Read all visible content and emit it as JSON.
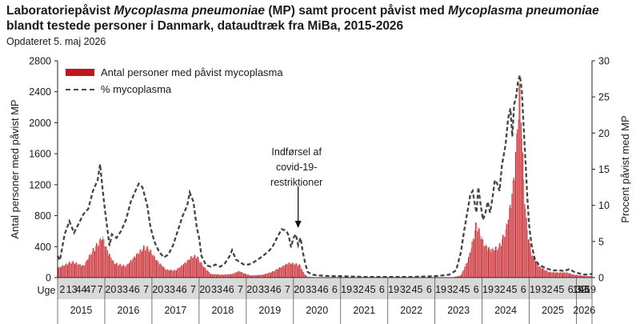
{
  "title": {
    "part1": "Laboratoriepåvist ",
    "organism1": "Mycoplasma pneumoniae",
    "part2": " (MP) samt procent påvist med ",
    "organism2": "Mycoplasma pneumoniae",
    "part3": " blandt testede personer i Danmark, dataudtræk fra MiBa, 2015-2026"
  },
  "updated": "Opdateret 5. maj 2026",
  "annotation": {
    "lines": [
      "Indførsel af",
      "covid-19-",
      "restriktioner"
    ]
  },
  "colors": {
    "bars": "#c0161e",
    "line": "#444444",
    "axis_band": "#d9d9d9"
  },
  "chart_data": {
    "type": "bar",
    "ylabel": "Antal personer med påvist MP",
    "y2label": "Procent påvist med MP",
    "ylim": [
      0,
      2800
    ],
    "y2lim": [
      0,
      30
    ],
    "yticks": [
      0,
      400,
      800,
      1200,
      1600,
      2000,
      2400,
      2800
    ],
    "y2ticks": [
      0,
      5,
      10,
      15,
      20,
      25,
      30
    ],
    "xaxis_prefix": "Uge",
    "legend": [
      "Antal personer med påvist mycoplasma",
      "% mycoplasma"
    ],
    "legend_position": "top-left",
    "grid": false,
    "week_labels": [
      [
        "2",
        "13",
        "44",
        "47",
        "7"
      ],
      [
        "20",
        "33",
        "46",
        "7"
      ],
      [
        "20",
        "33",
        "46",
        "7"
      ],
      [
        "20",
        "33",
        "46",
        "7"
      ],
      [
        "20",
        "33",
        "46",
        "7"
      ],
      [
        "20",
        "33",
        "46",
        "6"
      ],
      [
        "19",
        "32",
        "45",
        "6"
      ],
      [
        "19",
        "32",
        "45",
        "6"
      ],
      [
        "19",
        "32",
        "45",
        "6"
      ],
      [
        "19",
        "32",
        "45",
        "6"
      ],
      [
        "19",
        "32",
        "45",
        "6"
      ],
      [
        "19",
        "32",
        "45",
        "6",
        "19"
      ]
    ],
    "years": [
      "2015",
      "2016",
      "2017",
      "2018",
      "2019",
      "2020",
      "2021",
      "2022",
      "2023",
      "2024",
      "2025",
      "2026"
    ],
    "series": [
      {
        "name": "Antal personer med påvist mycoplasma",
        "kind": "bar",
        "points": [
          [
            2015.0,
            130
          ],
          [
            2015.3,
            220
          ],
          [
            2015.55,
            160
          ],
          [
            2015.75,
            380
          ],
          [
            2015.9,
            510
          ],
          [
            2015.95,
            560
          ],
          [
            2016.05,
            380
          ],
          [
            2016.2,
            200
          ],
          [
            2016.45,
            160
          ],
          [
            2016.65,
            300
          ],
          [
            2016.85,
            430
          ],
          [
            2016.95,
            390
          ],
          [
            2017.1,
            240
          ],
          [
            2017.3,
            110
          ],
          [
            2017.5,
            100
          ],
          [
            2017.7,
            200
          ],
          [
            2017.85,
            290
          ],
          [
            2017.95,
            300
          ],
          [
            2018.1,
            150
          ],
          [
            2018.25,
            50
          ],
          [
            2018.5,
            40
          ],
          [
            2018.7,
            50
          ],
          [
            2018.85,
            90
          ],
          [
            2018.95,
            60
          ],
          [
            2019.1,
            30
          ],
          [
            2019.35,
            40
          ],
          [
            2019.55,
            80
          ],
          [
            2019.75,
            150
          ],
          [
            2019.9,
            200
          ],
          [
            2020.05,
            190
          ],
          [
            2020.15,
            170
          ],
          [
            2020.22,
            60
          ],
          [
            2020.3,
            10
          ],
          [
            2020.5,
            4
          ],
          [
            2021.0,
            2
          ],
          [
            2022.0,
            2
          ],
          [
            2023.0,
            3
          ],
          [
            2023.4,
            6
          ],
          [
            2023.55,
            30
          ],
          [
            2023.7,
            240
          ],
          [
            2023.8,
            500
          ],
          [
            2023.88,
            760
          ],
          [
            2023.95,
            620
          ],
          [
            2024.05,
            450
          ],
          [
            2024.2,
            380
          ],
          [
            2024.35,
            420
          ],
          [
            2024.5,
            640
          ],
          [
            2024.6,
            980
          ],
          [
            2024.68,
            1400
          ],
          [
            2024.74,
            1950
          ],
          [
            2024.78,
            2500
          ],
          [
            2024.8,
            2630
          ],
          [
            2024.84,
            2100
          ],
          [
            2024.88,
            1350
          ],
          [
            2024.95,
            700
          ],
          [
            2025.05,
            330
          ],
          [
            2025.2,
            160
          ],
          [
            2025.4,
            80
          ],
          [
            2025.6,
            70
          ],
          [
            2025.8,
            70
          ],
          [
            2025.95,
            40
          ],
          [
            2026.1,
            30
          ],
          [
            2026.2,
            20
          ],
          [
            2026.33,
            18
          ]
        ]
      },
      {
        "name": "% mycoplasma",
        "kind": "line",
        "points": [
          [
            2015.0,
            3.0
          ],
          [
            2015.05,
            2.4
          ],
          [
            2015.15,
            6.0
          ],
          [
            2015.25,
            7.8
          ],
          [
            2015.35,
            6.2
          ],
          [
            2015.45,
            7.5
          ],
          [
            2015.55,
            8.8
          ],
          [
            2015.65,
            9.5
          ],
          [
            2015.75,
            12.0
          ],
          [
            2015.85,
            13.5
          ],
          [
            2015.9,
            15.7
          ],
          [
            2015.95,
            12.5
          ],
          [
            2016.0,
            9.5
          ],
          [
            2016.05,
            7.0
          ],
          [
            2016.1,
            4.4
          ],
          [
            2016.15,
            6.0
          ],
          [
            2016.25,
            5.5
          ],
          [
            2016.35,
            6.5
          ],
          [
            2016.45,
            8.0
          ],
          [
            2016.55,
            10.5
          ],
          [
            2016.65,
            12.0
          ],
          [
            2016.72,
            13.0
          ],
          [
            2016.8,
            12.5
          ],
          [
            2016.9,
            10.0
          ],
          [
            2016.97,
            7.0
          ],
          [
            2017.05,
            5.0
          ],
          [
            2017.15,
            3.6
          ],
          [
            2017.25,
            2.8
          ],
          [
            2017.35,
            3.2
          ],
          [
            2017.45,
            4.5
          ],
          [
            2017.55,
            6.5
          ],
          [
            2017.65,
            8.5
          ],
          [
            2017.75,
            10.0
          ],
          [
            2017.8,
            11.8
          ],
          [
            2017.88,
            10.5
          ],
          [
            2017.95,
            7.0
          ],
          [
            2018.0,
            5.5
          ],
          [
            2018.05,
            3.0
          ],
          [
            2018.15,
            1.7
          ],
          [
            2018.25,
            1.5
          ],
          [
            2018.35,
            1.8
          ],
          [
            2018.45,
            1.5
          ],
          [
            2018.55,
            2.0
          ],
          [
            2018.65,
            3.0
          ],
          [
            2018.7,
            3.8
          ],
          [
            2018.78,
            2.5
          ],
          [
            2018.85,
            2.2
          ],
          [
            2018.95,
            1.8
          ],
          [
            2019.05,
            1.8
          ],
          [
            2019.15,
            2.1
          ],
          [
            2019.25,
            2.5
          ],
          [
            2019.35,
            3.0
          ],
          [
            2019.45,
            3.5
          ],
          [
            2019.55,
            4.2
          ],
          [
            2019.65,
            5.5
          ],
          [
            2019.75,
            6.7
          ],
          [
            2019.85,
            6.5
          ],
          [
            2019.9,
            5.8
          ],
          [
            2019.95,
            4.2
          ],
          [
            2020.0,
            5.5
          ],
          [
            2020.05,
            6.0
          ],
          [
            2020.1,
            4.5
          ],
          [
            2020.15,
            5.5
          ],
          [
            2020.2,
            3.5
          ],
          [
            2020.25,
            2.0
          ],
          [
            2020.3,
            0.8
          ],
          [
            2020.4,
            0.4
          ],
          [
            2020.55,
            0.3
          ],
          [
            2020.8,
            0.2
          ],
          [
            2021.0,
            0.2
          ],
          [
            2021.5,
            0.1
          ],
          [
            2022.0,
            0.1
          ],
          [
            2022.5,
            0.1
          ],
          [
            2023.0,
            0.2
          ],
          [
            2023.3,
            0.4
          ],
          [
            2023.45,
            1.0
          ],
          [
            2023.55,
            3.5
          ],
          [
            2023.62,
            6.5
          ],
          [
            2023.7,
            9.5
          ],
          [
            2023.75,
            11.5
          ],
          [
            2023.8,
            12.0
          ],
          [
            2023.85,
            10.0
          ],
          [
            2023.88,
            9.0
          ],
          [
            2023.92,
            12.5
          ],
          [
            2023.97,
            10.0
          ],
          [
            2024.02,
            8.0
          ],
          [
            2024.07,
            9.0
          ],
          [
            2024.12,
            10.5
          ],
          [
            2024.17,
            9.0
          ],
          [
            2024.22,
            11.0
          ],
          [
            2024.27,
            13.5
          ],
          [
            2024.32,
            13.0
          ],
          [
            2024.37,
            12.0
          ],
          [
            2024.42,
            15.5
          ],
          [
            2024.5,
            18.5
          ],
          [
            2024.55,
            22.0
          ],
          [
            2024.6,
            23.4
          ],
          [
            2024.64,
            19.5
          ],
          [
            2024.68,
            24.0
          ],
          [
            2024.72,
            25.0
          ],
          [
            2024.76,
            27.0
          ],
          [
            2024.8,
            28.0
          ],
          [
            2024.84,
            26.0
          ],
          [
            2024.88,
            21.0
          ],
          [
            2024.92,
            16.0
          ],
          [
            2024.96,
            11.0
          ],
          [
            2025.0,
            7.0
          ],
          [
            2025.05,
            4.5
          ],
          [
            2025.12,
            2.5
          ],
          [
            2025.2,
            1.8
          ],
          [
            2025.35,
            1.3
          ],
          [
            2025.5,
            1.0
          ],
          [
            2025.65,
            1.0
          ],
          [
            2025.75,
            0.9
          ],
          [
            2025.85,
            1.2
          ],
          [
            2025.95,
            0.8
          ],
          [
            2026.1,
            0.5
          ],
          [
            2026.2,
            0.4
          ],
          [
            2026.33,
            0.5
          ]
        ]
      }
    ]
  }
}
